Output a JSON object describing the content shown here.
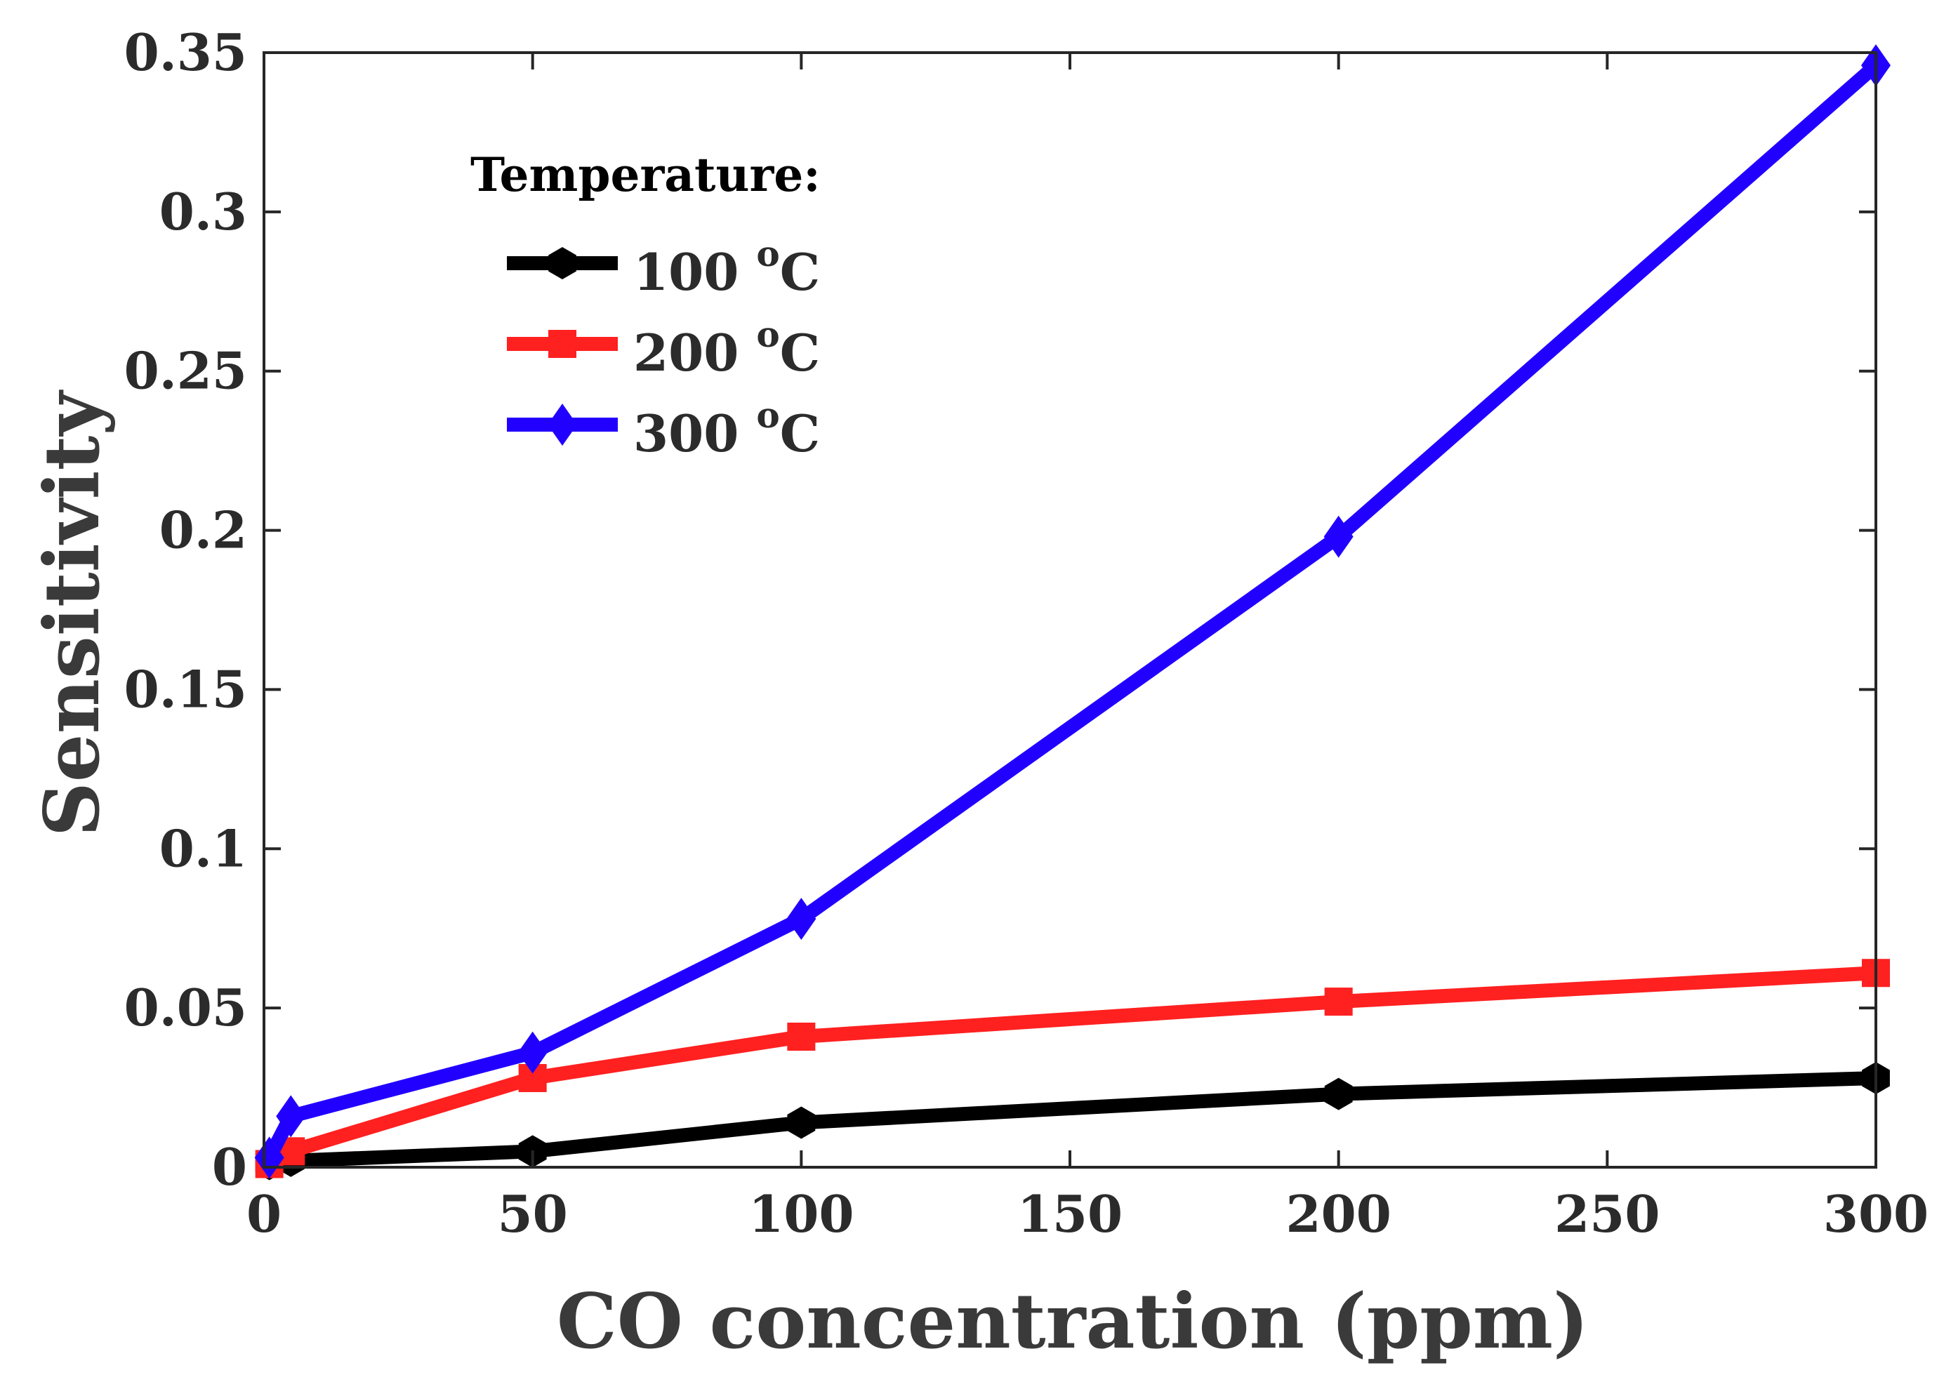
{
  "chart_data": {
    "type": "line",
    "title": "",
    "xlabel": "CO concentration (ppm)",
    "ylabel": "Sensitivity",
    "xlim": [
      0,
      300
    ],
    "ylim": [
      0,
      0.35
    ],
    "xticks": [
      0,
      50,
      100,
      150,
      200,
      250,
      300
    ],
    "xtick_labels": [
      "0",
      "50",
      "100",
      "150",
      "200",
      "250",
      "300"
    ],
    "yticks": [
      0,
      0.05,
      0.1,
      0.15,
      0.2,
      0.25,
      0.3,
      0.35
    ],
    "ytick_labels": [
      "0",
      "0.05",
      "0.1",
      "0.15",
      "0.2",
      "0.25",
      "0.3",
      "0.35"
    ],
    "grid": false,
    "legend": {
      "title": "Temperature:",
      "placement": "top-left",
      "unit_sup": "o",
      "unit": "C"
    },
    "x": [
      1,
      5,
      50,
      100,
      200,
      300
    ],
    "series": [
      {
        "name": "100",
        "color": "#000000",
        "marker": "hexagon",
        "values": [
          0.001,
          0.002,
          0.005,
          0.014,
          0.023,
          0.028
        ]
      },
      {
        "name": "200",
        "color": "#ff2020",
        "marker": "square",
        "values": [
          0.001,
          0.005,
          0.028,
          0.041,
          0.052,
          0.061
        ]
      },
      {
        "name": "300",
        "color": "#2200ff",
        "marker": "diamond",
        "values": [
          0.003,
          0.016,
          0.036,
          0.078,
          0.198,
          0.346
        ]
      }
    ]
  }
}
